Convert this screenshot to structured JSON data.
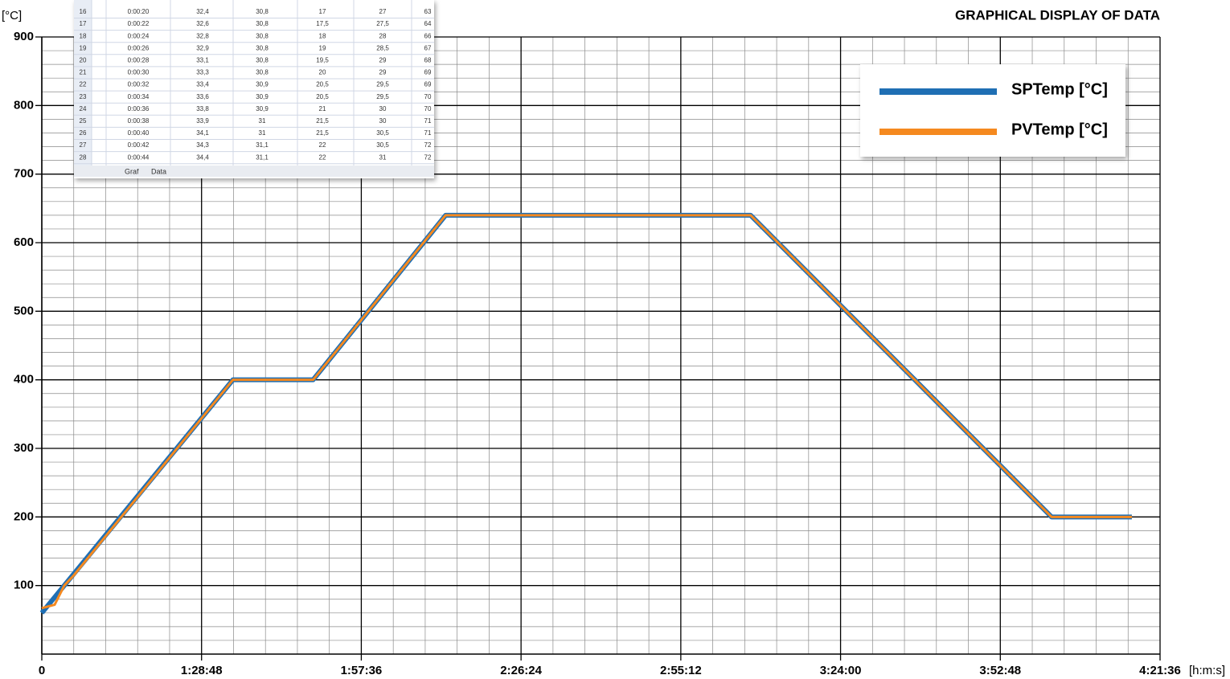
{
  "chart_data": {
    "type": "line",
    "title": "GRAPHICAL DISPLAY OF DATA",
    "y_label": "[°C]",
    "x_label": "[h:m:s]",
    "xlim": [
      3600,
      15696
    ],
    "xticks": [
      {
        "value": 3600,
        "label": "0"
      },
      {
        "value": 5328,
        "label": "1:28:48"
      },
      {
        "value": 7056,
        "label": "1:57:36"
      },
      {
        "value": 8784,
        "label": "2:26:24"
      },
      {
        "value": 10512,
        "label": "2:55:12"
      },
      {
        "value": 12240,
        "label": "3:24:00"
      },
      {
        "value": 13968,
        "label": "3:52:48"
      },
      {
        "value": 15696,
        "label": "4:21:36"
      }
    ],
    "ylim": [
      0,
      900
    ],
    "yticks": [
      100,
      200,
      300,
      400,
      500,
      600,
      700,
      800,
      900
    ],
    "grid": true,
    "legend": "top-right",
    "series": [
      {
        "name": "SPTemp [°C]",
        "color": "#1f6fb4",
        "x": [
          3600,
          5667,
          6535,
          7968,
          11267,
          14523,
          15391
        ],
        "values": [
          60,
          400,
          400,
          640,
          640,
          200,
          200
        ]
      },
      {
        "name": "PVTemp [°C]",
        "color": "#f5891f",
        "x": [
          3600,
          3739,
          3843,
          3947,
          5667,
          6535,
          7968,
          11267,
          14523,
          15391
        ],
        "values": [
          67,
          72,
          100,
          115,
          400,
          400,
          640,
          640,
          200,
          200
        ]
      }
    ]
  },
  "inset": {
    "rows": [
      [
        "16",
        "0:00:20",
        "32,4",
        "30,8",
        "17",
        "27",
        "63"
      ],
      [
        "17",
        "0:00:22",
        "32,6",
        "30,8",
        "17,5",
        "27,5",
        "64"
      ],
      [
        "18",
        "0:00:24",
        "32,8",
        "30,8",
        "18",
        "28",
        "66"
      ],
      [
        "19",
        "0:00:26",
        "32,9",
        "30,8",
        "19",
        "28,5",
        "67"
      ],
      [
        "20",
        "0:00:28",
        "33,1",
        "30,8",
        "19,5",
        "29",
        "68"
      ],
      [
        "21",
        "0:00:30",
        "33,3",
        "30,8",
        "20",
        "29",
        "69"
      ],
      [
        "22",
        "0:00:32",
        "33,4",
        "30,9",
        "20,5",
        "29,5",
        "69"
      ],
      [
        "23",
        "0:00:34",
        "33,6",
        "30,9",
        "20,5",
        "29,5",
        "70"
      ],
      [
        "24",
        "0:00:36",
        "33,8",
        "30,9",
        "21",
        "30",
        "70"
      ],
      [
        "25",
        "0:00:38",
        "33,9",
        "31",
        "21,5",
        "30",
        "71"
      ],
      [
        "26",
        "0:00:40",
        "34,1",
        "31",
        "21,5",
        "30,5",
        "71"
      ],
      [
        "27",
        "0:00:42",
        "34,3",
        "31,1",
        "22",
        "30,5",
        "72"
      ],
      [
        "28",
        "0:00:44",
        "34,4",
        "31,1",
        "22",
        "31",
        "72"
      ]
    ],
    "tabs": [
      "Graf",
      "Data"
    ]
  }
}
